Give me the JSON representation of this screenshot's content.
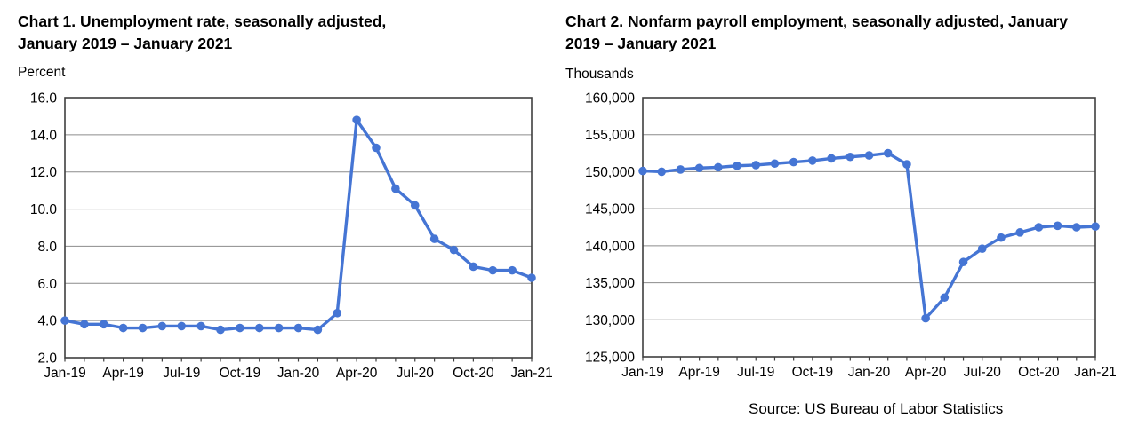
{
  "source": {
    "text": "Source: US Bureau of Labor Statistics"
  },
  "colors": {
    "line": "#4575d4",
    "grid": "#8c8c8c",
    "frame": "#3f3f3f",
    "text": "#000000",
    "background": "#ffffff"
  },
  "chart_data": [
    {
      "type": "line",
      "title": "Chart 1. Unemployment rate, seasonally adjusted, January 2019 – January 2021",
      "unit_label": "Percent",
      "ylabel": "Percent",
      "xlabel": "",
      "grid": true,
      "legend": null,
      "ylim": [
        2.0,
        16.0
      ],
      "x": [
        "Jan-19",
        "Feb-19",
        "Mar-19",
        "Apr-19",
        "May-19",
        "Jun-19",
        "Jul-19",
        "Aug-19",
        "Sep-19",
        "Oct-19",
        "Nov-19",
        "Dec-19",
        "Jan-20",
        "Feb-20",
        "Mar-20",
        "Apr-20",
        "May-20",
        "Jun-20",
        "Jul-20",
        "Aug-20",
        "Sep-20",
        "Oct-20",
        "Nov-20",
        "Dec-20",
        "Jan-21"
      ],
      "values": [
        4.0,
        3.8,
        3.8,
        3.6,
        3.6,
        3.7,
        3.7,
        3.7,
        3.5,
        3.6,
        3.6,
        3.6,
        3.6,
        3.5,
        4.4,
        14.8,
        13.3,
        11.1,
        10.2,
        8.4,
        7.8,
        6.9,
        6.7,
        6.7,
        6.3
      ],
      "y_ticks": [
        {
          "value": 16.0,
          "label": "16.0"
        },
        {
          "value": 14.0,
          "label": "14.0"
        },
        {
          "value": 12.0,
          "label": "12.0"
        },
        {
          "value": 10.0,
          "label": "10.0"
        },
        {
          "value": 8.0,
          "label": "8.0"
        },
        {
          "value": 6.0,
          "label": "6.0"
        },
        {
          "value": 4.0,
          "label": "4.0"
        },
        {
          "value": 2.0,
          "label": "2.0"
        }
      ],
      "x_tick_labels": [
        {
          "index": 0,
          "label": "Jan-19"
        },
        {
          "index": 3,
          "label": "Apr-19"
        },
        {
          "index": 6,
          "label": "Jul-19"
        },
        {
          "index": 9,
          "label": "Oct-19"
        },
        {
          "index": 12,
          "label": "Jan-20"
        },
        {
          "index": 15,
          "label": "Apr-20"
        },
        {
          "index": 18,
          "label": "Jul-20"
        },
        {
          "index": 21,
          "label": "Oct-20"
        },
        {
          "index": 24,
          "label": "Jan-21"
        }
      ]
    },
    {
      "type": "line",
      "title": "Chart 2. Nonfarm payroll employment, seasonally adjusted, January 2019 – January 2021",
      "unit_label": "Thousands",
      "ylabel": "Thousands",
      "xlabel": "",
      "grid": true,
      "legend": null,
      "ylim": [
        125000,
        160000
      ],
      "x": [
        "Jan-19",
        "Feb-19",
        "Mar-19",
        "Apr-19",
        "May-19",
        "Jun-19",
        "Jul-19",
        "Aug-19",
        "Sep-19",
        "Oct-19",
        "Nov-19",
        "Dec-19",
        "Jan-20",
        "Feb-20",
        "Mar-20",
        "Apr-20",
        "May-20",
        "Jun-20",
        "Jul-20",
        "Aug-20",
        "Sep-20",
        "Oct-20",
        "Nov-20",
        "Dec-20",
        "Jan-21"
      ],
      "values": [
        150100,
        150000,
        150300,
        150500,
        150600,
        150800,
        150900,
        151100,
        151300,
        151500,
        151800,
        152000,
        152200,
        152500,
        151000,
        130200,
        133000,
        137800,
        139600,
        141100,
        141800,
        142500,
        142700,
        142500,
        142600
      ],
      "y_ticks": [
        {
          "value": 160000,
          "label": "160,000"
        },
        {
          "value": 155000,
          "label": "155,000"
        },
        {
          "value": 150000,
          "label": "150,000"
        },
        {
          "value": 145000,
          "label": "145,000"
        },
        {
          "value": 140000,
          "label": "140,000"
        },
        {
          "value": 135000,
          "label": "135,000"
        },
        {
          "value": 130000,
          "label": "130,000"
        },
        {
          "value": 125000,
          "label": "125,000"
        }
      ],
      "x_tick_labels": [
        {
          "index": 0,
          "label": "Jan-19"
        },
        {
          "index": 3,
          "label": "Apr-19"
        },
        {
          "index": 6,
          "label": "Jul-19"
        },
        {
          "index": 9,
          "label": "Oct-19"
        },
        {
          "index": 12,
          "label": "Jan-20"
        },
        {
          "index": 15,
          "label": "Apr-20"
        },
        {
          "index": 18,
          "label": "Jul-20"
        },
        {
          "index": 21,
          "label": "Oct-20"
        },
        {
          "index": 24,
          "label": "Jan-21"
        }
      ]
    }
  ]
}
